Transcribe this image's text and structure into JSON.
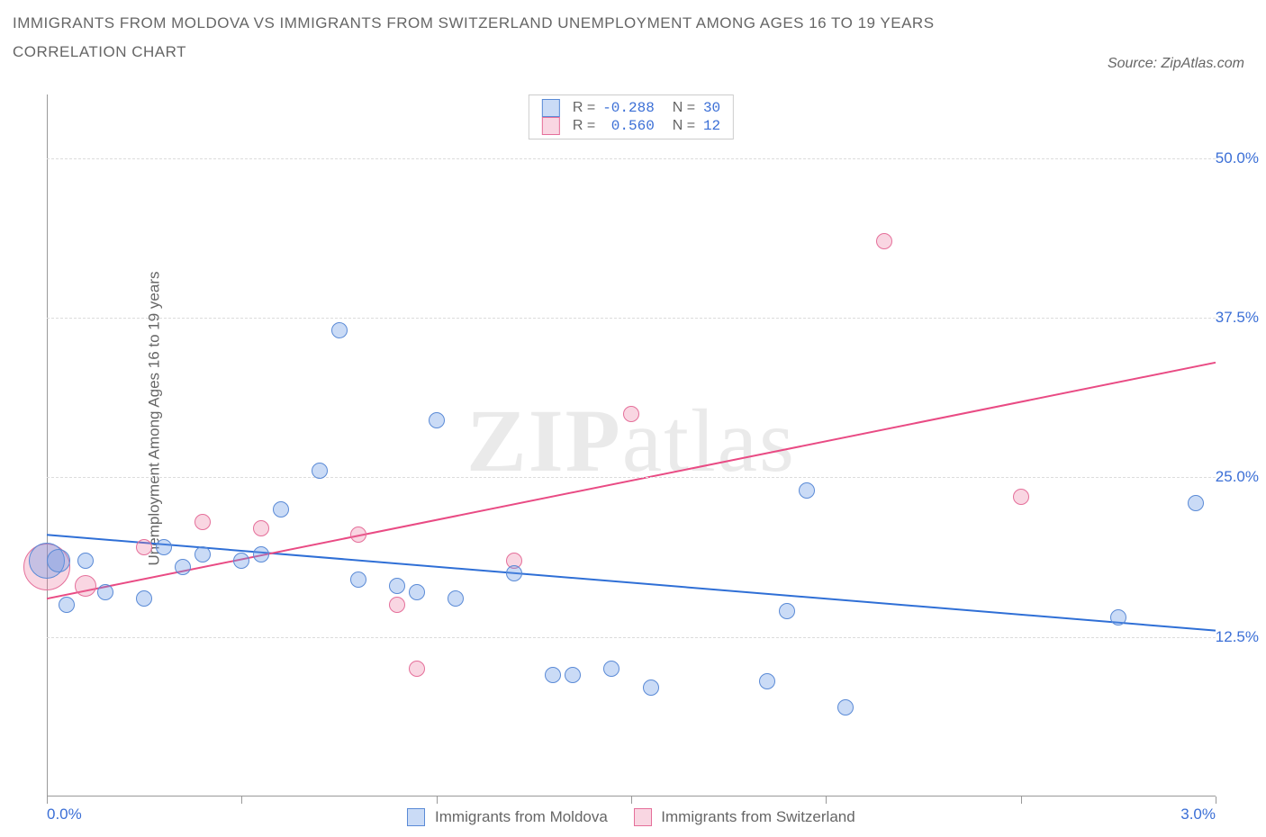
{
  "title_line1": "IMMIGRANTS FROM MOLDOVA VS IMMIGRANTS FROM SWITZERLAND UNEMPLOYMENT AMONG AGES 16 TO 19 YEARS",
  "title_line2": "CORRELATION CHART",
  "source_label": "Source: ZipAtlas.com",
  "y_axis_label": "Unemployment Among Ages 16 to 19 years",
  "watermark_bold": "ZIP",
  "watermark_rest": "atlas",
  "chart": {
    "type": "scatter",
    "xlim": [
      0.0,
      3.0
    ],
    "ylim": [
      0.0,
      55.0
    ],
    "y_ticks": [
      12.5,
      25.0,
      37.5,
      50.0
    ],
    "y_tick_labels": [
      "12.5%",
      "25.0%",
      "37.5%",
      "50.0%"
    ],
    "x_ticks": [
      0.0,
      0.5,
      1.0,
      1.5,
      2.0,
      2.5,
      3.0
    ],
    "x_tick_labels": [
      "0.0%",
      "3.0%"
    ],
    "x_tick_label_positions": [
      0.0,
      3.0
    ],
    "grid_color": "#dcdcdc",
    "background_color": "#ffffff",
    "axis_color": "#999999",
    "label_color": "#666666",
    "tick_label_color": "#3b6fd6",
    "label_fontsize": 17,
    "tick_fontsize": 17,
    "title_fontsize": 17,
    "title_color": "#666666"
  },
  "series": [
    {
      "name": "Immigrants from Moldova",
      "fill": "rgba(102,153,230,0.35)",
      "stroke": "#5a8ad6",
      "line_color": "#2f6fd6",
      "line_width": 2,
      "default_radius": 9,
      "R_label": "R =",
      "R_value": "-0.288",
      "N_label": "N =",
      "N_value": "30",
      "trend": {
        "x1": 0.0,
        "y1": 20.5,
        "x2": 3.0,
        "y2": 13.0
      },
      "points": [
        {
          "x": 0.0,
          "y": 18.5,
          "r": 20
        },
        {
          "x": 0.03,
          "y": 18.5,
          "r": 13
        },
        {
          "x": 0.05,
          "y": 15.0
        },
        {
          "x": 0.1,
          "y": 18.5
        },
        {
          "x": 0.15,
          "y": 16.0
        },
        {
          "x": 0.25,
          "y": 15.5
        },
        {
          "x": 0.3,
          "y": 19.5
        },
        {
          "x": 0.35,
          "y": 18.0
        },
        {
          "x": 0.4,
          "y": 19.0
        },
        {
          "x": 0.5,
          "y": 18.5
        },
        {
          "x": 0.55,
          "y": 19.0
        },
        {
          "x": 0.6,
          "y": 22.5
        },
        {
          "x": 0.7,
          "y": 25.5
        },
        {
          "x": 0.75,
          "y": 36.5
        },
        {
          "x": 0.8,
          "y": 17.0
        },
        {
          "x": 0.9,
          "y": 16.5
        },
        {
          "x": 0.95,
          "y": 16.0
        },
        {
          "x": 1.0,
          "y": 29.5
        },
        {
          "x": 1.05,
          "y": 15.5
        },
        {
          "x": 1.2,
          "y": 17.5
        },
        {
          "x": 1.3,
          "y": 9.5
        },
        {
          "x": 1.35,
          "y": 9.5
        },
        {
          "x": 1.45,
          "y": 10.0
        },
        {
          "x": 1.55,
          "y": 8.5
        },
        {
          "x": 1.85,
          "y": 9.0
        },
        {
          "x": 1.9,
          "y": 14.5
        },
        {
          "x": 1.95,
          "y": 24.0
        },
        {
          "x": 2.05,
          "y": 7.0
        },
        {
          "x": 2.75,
          "y": 14.0
        },
        {
          "x": 2.95,
          "y": 23.0
        }
      ]
    },
    {
      "name": "Immigrants from Switzerland",
      "fill": "rgba(235,120,160,0.30)",
      "stroke": "#e56f9a",
      "line_color": "#e94b84",
      "line_width": 2,
      "default_radius": 9,
      "R_label": "R =",
      "R_value": "0.560",
      "N_label": "N =",
      "N_value": "12",
      "trend": {
        "x1": 0.0,
        "y1": 15.5,
        "x2": 3.0,
        "y2": 34.0
      },
      "points": [
        {
          "x": 0.0,
          "y": 18.0,
          "r": 26
        },
        {
          "x": 0.1,
          "y": 16.5,
          "r": 12
        },
        {
          "x": 0.25,
          "y": 19.5
        },
        {
          "x": 0.4,
          "y": 21.5
        },
        {
          "x": 0.55,
          "y": 21.0
        },
        {
          "x": 0.8,
          "y": 20.5
        },
        {
          "x": 0.9,
          "y": 15.0
        },
        {
          "x": 0.95,
          "y": 10.0
        },
        {
          "x": 1.2,
          "y": 18.5
        },
        {
          "x": 1.5,
          "y": 30.0
        },
        {
          "x": 2.15,
          "y": 43.5
        },
        {
          "x": 2.5,
          "y": 23.5
        }
      ]
    }
  ]
}
